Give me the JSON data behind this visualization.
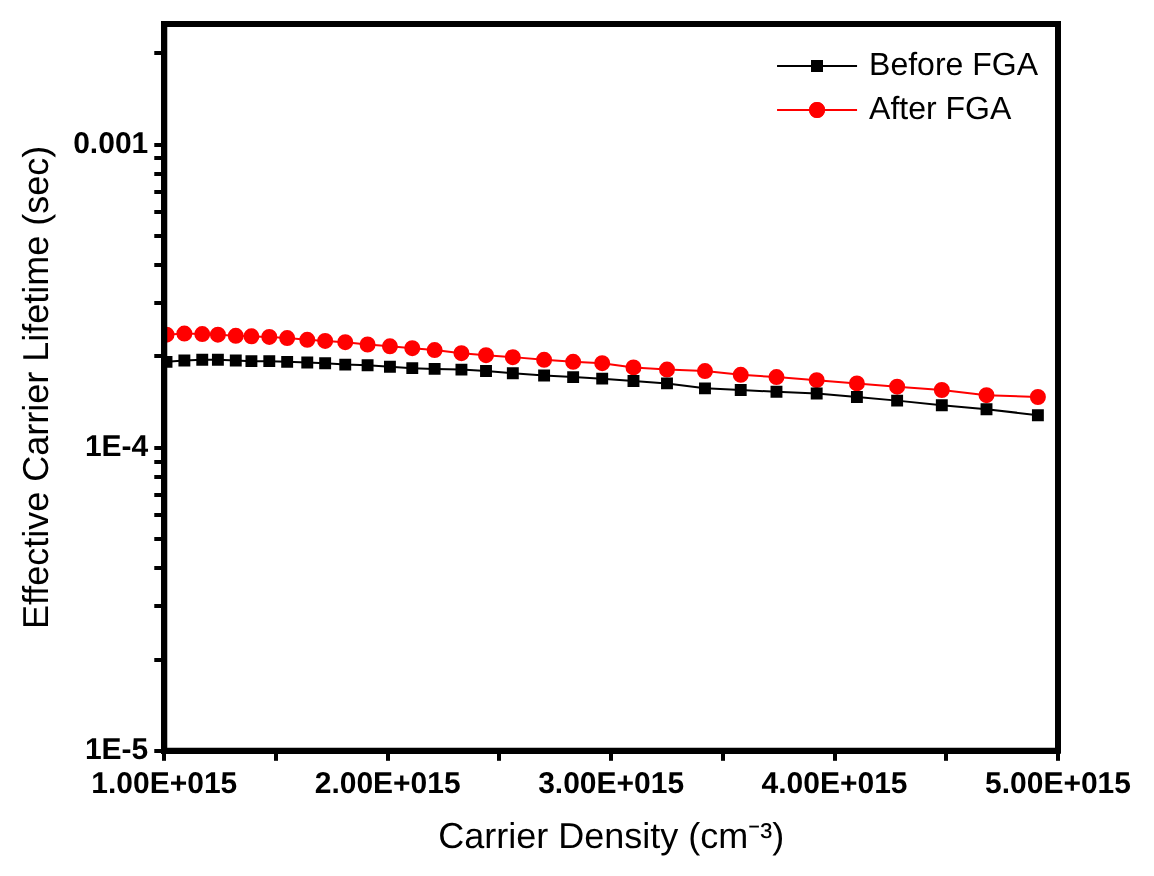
{
  "chart_data": {
    "type": "line",
    "xlabel": "Carrier Density (cm⁻³)",
    "ylabel": "Effective Carrier Lifetime (sec)",
    "x": [
      1010000000000000.0,
      1090000000000000.0,
      1170000000000000.0,
      1240000000000000.0,
      1320000000000000.0,
      1390000000000000.0,
      1470000000000000.0,
      1550000000000000.0,
      1640000000000000.0,
      1720000000000000.0,
      1810000000000000.0,
      1910000000000000.0,
      2010000000000000.0,
      2110000000000000.0,
      2210000000000000.0,
      2330000000000000.0,
      2440000000000000.0,
      2560000000000000.0,
      2700000000000000.0,
      2830000000000000.0,
      2960000000000000.0,
      3100000000000000.0,
      3250000000000000.0,
      3420000000000000.0,
      3580000000000000.0,
      3740000000000000.0,
      3920000000000000.0,
      4100000000000000.0,
      4280000000000000.0,
      4480000000000000.0,
      4680000000000000.0,
      4910000000000000.0
    ],
    "series": [
      {
        "name": "Before FGA",
        "color": "#000000",
        "marker": "square",
        "values": [
          0.000192,
          0.000194,
          0.000195,
          0.000195,
          0.000194,
          0.000193,
          0.000193,
          0.000192,
          0.000191,
          0.00019,
          0.000188,
          0.000187,
          0.000185,
          0.000183,
          0.000182,
          0.000181,
          0.000179,
          0.000176,
          0.000173,
          0.000171,
          0.000169,
          0.000166,
          0.000163,
          0.000157,
          0.000155,
          0.000153,
          0.000151,
          0.000147,
          0.000143,
          0.000138,
          0.000134,
          0.000128
        ]
      },
      {
        "name": "After FGA",
        "color": "#ff0000",
        "marker": "circle",
        "values": [
          0.000236,
          0.000238,
          0.000237,
          0.000236,
          0.000234,
          0.000233,
          0.000232,
          0.00023,
          0.000227,
          0.000225,
          0.000223,
          0.000219,
          0.000216,
          0.000213,
          0.00021,
          0.000205,
          0.000202,
          0.000199,
          0.000195,
          0.000192,
          0.00019,
          0.000184,
          0.000181,
          0.000179,
          0.000174,
          0.000171,
          0.000167,
          0.000163,
          0.000159,
          0.000155,
          0.000149,
          0.000147
        ]
      }
    ],
    "xlim": [
      1000000000000000.0,
      5000000000000000.0
    ],
    "xticks": [
      {
        "value": 1000000000000000.0,
        "label": "1.00E+015"
      },
      {
        "value": 1500000000000000.0,
        "label": null
      },
      {
        "value": 2000000000000000.0,
        "label": "2.00E+015"
      },
      {
        "value": 2500000000000000.0,
        "label": null
      },
      {
        "value": 3000000000000000.0,
        "label": "3.00E+015"
      },
      {
        "value": 3500000000000000.0,
        "label": null
      },
      {
        "value": 4000000000000000.0,
        "label": "4.00E+015"
      },
      {
        "value": 4500000000000000.0,
        "label": null
      },
      {
        "value": 5000000000000000.0,
        "label": "5.00E+015"
      }
    ],
    "ylim": [
      1e-05,
      0.0025
    ],
    "log": "y",
    "yticks": [
      {
        "value": 1e-05,
        "label": "1E-5"
      },
      {
        "value": 2e-05,
        "label": null
      },
      {
        "value": 3e-05,
        "label": null
      },
      {
        "value": 4e-05,
        "label": null
      },
      {
        "value": 5e-05,
        "label": null
      },
      {
        "value": 6e-05,
        "label": null
      },
      {
        "value": 7e-05,
        "label": null
      },
      {
        "value": 8e-05,
        "label": null
      },
      {
        "value": 9e-05,
        "label": null
      },
      {
        "value": 0.0001,
        "label": "1E-4"
      },
      {
        "value": 0.0002,
        "label": null
      },
      {
        "value": 0.0003,
        "label": null
      },
      {
        "value": 0.0004,
        "label": null
      },
      {
        "value": 0.0005,
        "label": null
      },
      {
        "value": 0.0006,
        "label": null
      },
      {
        "value": 0.0007,
        "label": null
      },
      {
        "value": 0.0008,
        "label": null
      },
      {
        "value": 0.0009,
        "label": null
      },
      0.001,
      {
        "value": 0.002,
        "label": null
      }
    ],
    "grid": false,
    "legend": "top right",
    "line_style": "solid"
  }
}
